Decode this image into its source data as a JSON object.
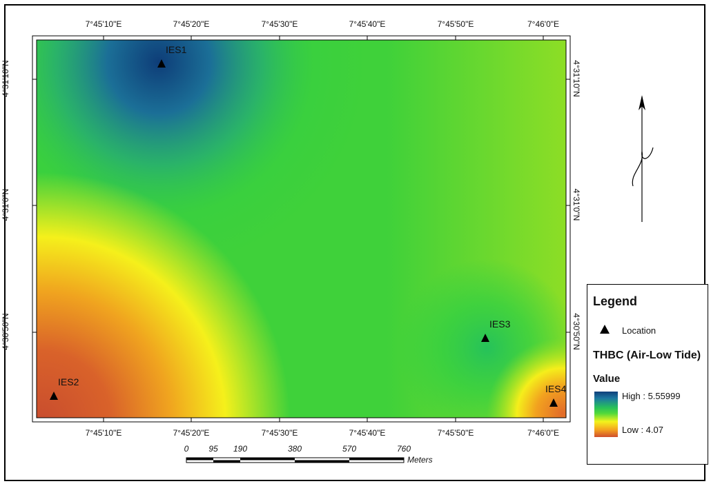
{
  "map": {
    "top_ticks": [
      "7°45'10\"E",
      "7°45'20\"E",
      "7°45'30\"E",
      "7°45'40\"E",
      "7°45'50\"E",
      "7°46'0\"E"
    ],
    "bottom_ticks": [
      "7°45'10\"E",
      "7°45'20\"E",
      "7°45'30\"E",
      "7°45'40\"E",
      "7°45'50\"E",
      "7°46'0\"E"
    ],
    "left_ticks": [
      "4°31'10\"N",
      "4°31'0\"N",
      "4°30'50\"N"
    ],
    "right_ticks": [
      "4°31'10\"N",
      "4°31'0\"N",
      "4°30'50\"N"
    ],
    "sites": [
      {
        "id": "IES1",
        "label": "IES1"
      },
      {
        "id": "IES2",
        "label": "IES2"
      },
      {
        "id": "IES3",
        "label": "IES3"
      },
      {
        "id": "IES4",
        "label": "IES4"
      }
    ]
  },
  "north_arrow": {
    "label": "N"
  },
  "scale_bar": {
    "ticks": [
      "0",
      "95",
      "190",
      "380",
      "570",
      "760"
    ],
    "unit": "Meters"
  },
  "legend": {
    "title": "Legend",
    "location_label": "Location",
    "layer_title": "THBC (Air-Low Tide)",
    "value_title": "Value",
    "high_label": "High : 5.55999",
    "low_label": "Low : 4.07",
    "high_value": 5.55999,
    "low_value": 4.07,
    "ramp_colors": [
      "#0f3f7a",
      "#1c78a0",
      "#27c05a",
      "#52d93a",
      "#f3f31c",
      "#f4a21f",
      "#cf4e2d"
    ]
  }
}
